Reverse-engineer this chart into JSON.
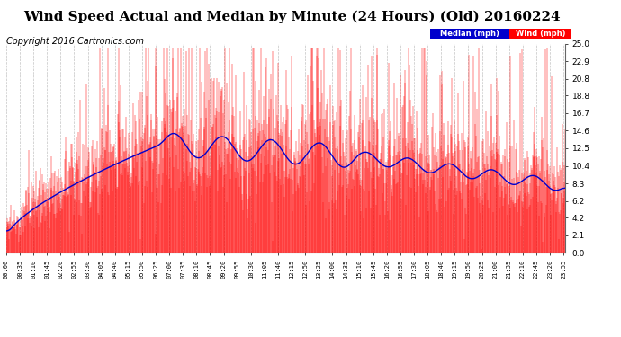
{
  "title": "Wind Speed Actual and Median by Minute (24 Hours) (Old) 20160224",
  "copyright": "Copyright 2016 Cartronics.com",
  "ylabel_right_ticks": [
    0.0,
    2.1,
    4.2,
    6.2,
    8.3,
    10.4,
    12.5,
    14.6,
    16.7,
    18.8,
    20.8,
    22.9,
    25.0
  ],
  "ylim": [
    0.0,
    25.0
  ],
  "xlim_minutes": [
    0,
    1439
  ],
  "bg_color": "#ffffff",
  "plot_bg_color": "#ffffff",
  "grid_color": "#aaaaaa",
  "wind_color": "#ff0000",
  "median_color": "#0000cc",
  "title_fontsize": 11,
  "copyright_fontsize": 7,
  "legend_median_bg": "#0000cc",
  "legend_wind_bg": "#ff0000",
  "x_tick_labels": [
    "00:00",
    "00:35",
    "01:10",
    "01:45",
    "02:20",
    "02:55",
    "03:30",
    "04:05",
    "04:40",
    "05:15",
    "05:50",
    "06:25",
    "07:00",
    "07:35",
    "08:10",
    "08:45",
    "09:20",
    "09:55",
    "10:30",
    "11:05",
    "11:40",
    "12:15",
    "12:50",
    "13:25",
    "14:00",
    "14:35",
    "15:10",
    "15:45",
    "16:20",
    "16:55",
    "17:30",
    "18:05",
    "18:40",
    "19:15",
    "19:50",
    "20:25",
    "21:00",
    "21:35",
    "22:10",
    "22:45",
    "23:20",
    "23:55"
  ]
}
